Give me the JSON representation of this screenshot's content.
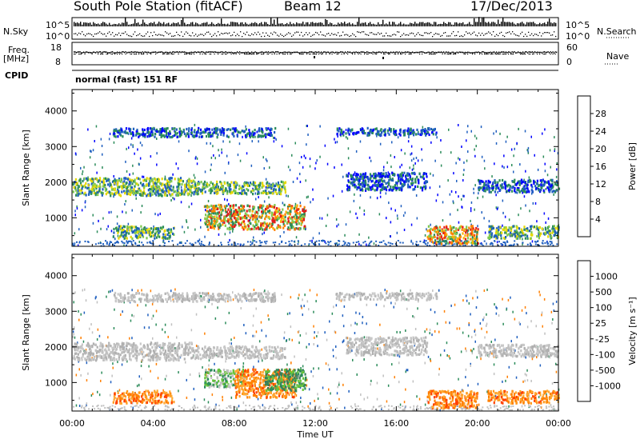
{
  "header": {
    "station": "South Pole Station (fitACF)",
    "beam": "Beam 12",
    "date": "17/Dec/2013"
  },
  "top_panels": {
    "nsky_label": "N.Sky",
    "nsky_ticks": [
      "10^5",
      "10^0"
    ],
    "nsearch_label": "N.Search",
    "nsearch_ticks": [
      "10^5",
      "10^0"
    ],
    "freq_label": "Freq.",
    "freq_unit": "[MHz]",
    "freq_ticks": [
      "18",
      "8"
    ],
    "nave_label": "Nave",
    "nave_ticks": [
      "60",
      "0"
    ],
    "cpid_label": "CPID",
    "cpid_value": "normal (fast) 151 RF"
  },
  "chart_data": [
    {
      "type": "heatmap",
      "title": "",
      "xlabel": "",
      "ylabel": "Slant Range [km]",
      "x_ticks": [
        "00:00",
        "04:00",
        "08:00",
        "12:00",
        "16:00",
        "20:00",
        "00:00"
      ],
      "x_hours": [
        0,
        4,
        8,
        12,
        16,
        20,
        24
      ],
      "xlim": [
        0,
        24
      ],
      "y_ticks": [
        1000,
        2000,
        3000,
        4000
      ],
      "ylim": [
        200,
        4600
      ],
      "colorbar": {
        "label": "Power [dB]",
        "ticks": [
          "28",
          "24",
          "20",
          "16",
          "12",
          "8",
          "4"
        ],
        "colors": [
          "#e41a1c",
          "#ff7f00",
          "#fdae00",
          "#e6d800",
          "#7fc94e",
          "#2b8c5a",
          "#1f5fbf",
          "#0000ff"
        ]
      },
      "regions": [
        {
          "x0": 0.0,
          "x1": 6.0,
          "y0": 1650,
          "y1": 2150,
          "level": "medium"
        },
        {
          "x0": 6.0,
          "x1": 10.5,
          "y0": 1700,
          "y1": 2050,
          "level": "medium"
        },
        {
          "x0": 6.5,
          "x1": 11.5,
          "y0": 700,
          "y1": 1400,
          "level": "high"
        },
        {
          "x0": 13.5,
          "x1": 17.5,
          "y0": 1800,
          "y1": 2300,
          "level": "low"
        },
        {
          "x0": 17.5,
          "x1": 20.0,
          "y0": 300,
          "y1": 800,
          "level": "high"
        },
        {
          "x0": 20.5,
          "x1": 24.0,
          "y0": 450,
          "y1": 800,
          "level": "medium"
        },
        {
          "x0": 20.0,
          "x1": 24.0,
          "y0": 1750,
          "y1": 2100,
          "level": "low"
        },
        {
          "x0": 2.0,
          "x1": 5.0,
          "y0": 450,
          "y1": 800,
          "level": "medium"
        },
        {
          "x0": 2.0,
          "x1": 10.0,
          "y0": 3300,
          "y1": 3550,
          "level": "low"
        },
        {
          "x0": 13.0,
          "x1": 18.0,
          "y0": 3350,
          "y1": 3550,
          "level": "low"
        }
      ]
    },
    {
      "type": "heatmap",
      "title": "",
      "xlabel": "Time UT",
      "ylabel": "Slant Range [km]",
      "x_ticks": [
        "00:00",
        "04:00",
        "08:00",
        "12:00",
        "16:00",
        "20:00",
        "00:00"
      ],
      "x_hours": [
        0,
        4,
        8,
        12,
        16,
        20,
        24
      ],
      "xlim": [
        0,
        24
      ],
      "y_ticks": [
        1000,
        2000,
        3000,
        4000
      ],
      "ylim": [
        200,
        4600
      ],
      "colorbar": {
        "label": "Velocity [m s⁻¹]",
        "ticks": [
          "1000",
          "500",
          "100",
          "25",
          "-25",
          "-100",
          "-500",
          "-1000"
        ],
        "colors": [
          "#1f3fbf",
          "#3b7fd8",
          "#2b8c5a",
          "#66c23a",
          "#c0c0c0",
          "#ffaa33",
          "#ff7f00",
          "#ff4000",
          "#e41a1c"
        ]
      },
      "regions": [
        {
          "x0": 0.0,
          "x1": 6.0,
          "y0": 1650,
          "y1": 2150,
          "level": "grey"
        },
        {
          "x0": 6.0,
          "x1": 10.5,
          "y0": 1700,
          "y1": 2050,
          "level": "grey"
        },
        {
          "x0": 6.5,
          "x1": 8.5,
          "y0": 900,
          "y1": 1400,
          "level": "green"
        },
        {
          "x0": 8.0,
          "x1": 11.0,
          "y0": 600,
          "y1": 1400,
          "level": "orange"
        },
        {
          "x0": 9.5,
          "x1": 11.5,
          "y0": 800,
          "y1": 1400,
          "level": "darkgreen"
        },
        {
          "x0": 13.5,
          "x1": 17.5,
          "y0": 1800,
          "y1": 2300,
          "level": "grey"
        },
        {
          "x0": 17.5,
          "x1": 20.0,
          "y0": 300,
          "y1": 800,
          "level": "orange"
        },
        {
          "x0": 20.5,
          "x1": 24.0,
          "y0": 450,
          "y1": 800,
          "level": "orange"
        },
        {
          "x0": 20.0,
          "x1": 24.0,
          "y0": 1750,
          "y1": 2100,
          "level": "grey"
        },
        {
          "x0": 2.0,
          "x1": 5.0,
          "y0": 450,
          "y1": 800,
          "level": "orange"
        },
        {
          "x0": 2.0,
          "x1": 10.0,
          "y0": 3300,
          "y1": 3550,
          "level": "grey"
        },
        {
          "x0": 13.0,
          "x1": 18.0,
          "y0": 3350,
          "y1": 3550,
          "level": "grey"
        }
      ]
    }
  ]
}
